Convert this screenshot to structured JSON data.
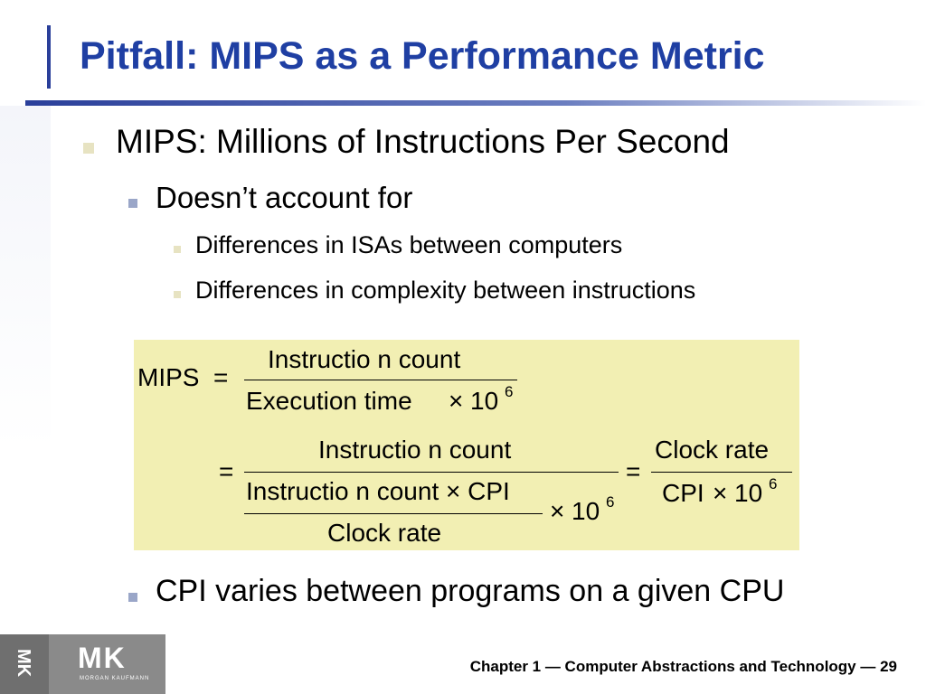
{
  "slide": {
    "title": "Pitfall: MIPS as a Performance Metric",
    "bullets": {
      "b1": "MIPS: Millions of Instructions Per Second",
      "b2": "Doesn’t account for",
      "b3a": "Differences in ISAs between computers",
      "b3b": "Differences in complexity between instructions",
      "b4": "CPI varies between programs on a given CPU"
    },
    "formula": {
      "mips": "MIPS",
      "eq": "=",
      "instr_count": "Instructio n count",
      "exec_time": "Execution  time",
      "times": "×",
      "ten": "10",
      "exp": "6",
      "instr_cpi": "Instructio n count × CPI",
      "clock_rate": "Clock rate",
      "cpi": "CPI"
    },
    "footer": "Chapter 1 — Computer Abstractions and Technology — 29",
    "logo": {
      "mk": "MK",
      "sub": "MORGAN KAUFMANN"
    }
  },
  "colors": {
    "title": "#1f3fa3",
    "formula_bg": "#f2efb3",
    "accent_bar": "#2a3f9a"
  }
}
